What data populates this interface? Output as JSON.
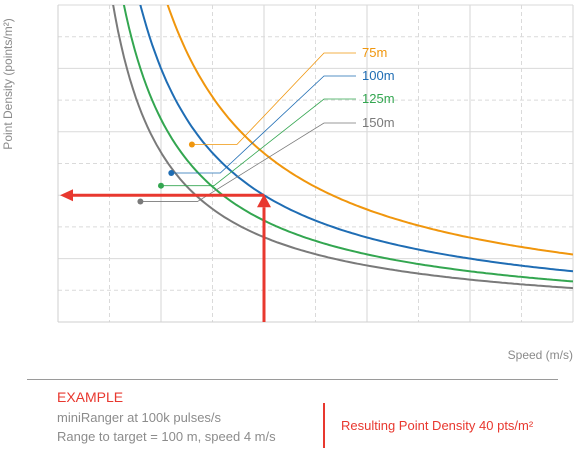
{
  "chart_data": {
    "type": "line",
    "title": "",
    "xlabel": "Speed (m/s)",
    "ylabel": "Point Density (points/m²)",
    "xlim": [
      0,
      10
    ],
    "ylim": [
      0,
      100
    ],
    "x_ticks": [
      0,
      1,
      2,
      3,
      4,
      5,
      6,
      7,
      8,
      9,
      10
    ],
    "y_ticks": [
      0,
      10,
      20,
      30,
      40,
      50,
      60,
      70,
      80,
      90,
      100
    ],
    "tick_labels_shown": false,
    "grid": true,
    "series": [
      {
        "name": "75m",
        "color": "#f0960d",
        "formula": "density = 213 / speed",
        "marker": {
          "x": 2.6,
          "y": 56
        }
      },
      {
        "name": "100m",
        "color": "#1f6db4",
        "formula": "density = 160 / speed",
        "marker": {
          "x": 2.2,
          "y": 47
        }
      },
      {
        "name": "125m",
        "color": "#33a650",
        "formula": "density = 128 / speed",
        "marker": {
          "x": 2.0,
          "y": 43
        }
      },
      {
        "name": "150m",
        "color": "#7a7a7a",
        "formula": "density = 107 / speed",
        "marker": {
          "x": 1.6,
          "y": 38
        }
      }
    ],
    "annotation": {
      "color": "#e8382f",
      "speed": 4,
      "density": 40,
      "arrows": [
        "up from x-axis at speed 4",
        "left to y-axis at density 40"
      ]
    }
  },
  "example": {
    "title": "EXAMPLE",
    "line1": "miniRanger at 100k pulses/s",
    "line2": "Range to target = 100 m, speed 4 m/s",
    "result": "Resulting Point Density 40 pts/m²"
  }
}
